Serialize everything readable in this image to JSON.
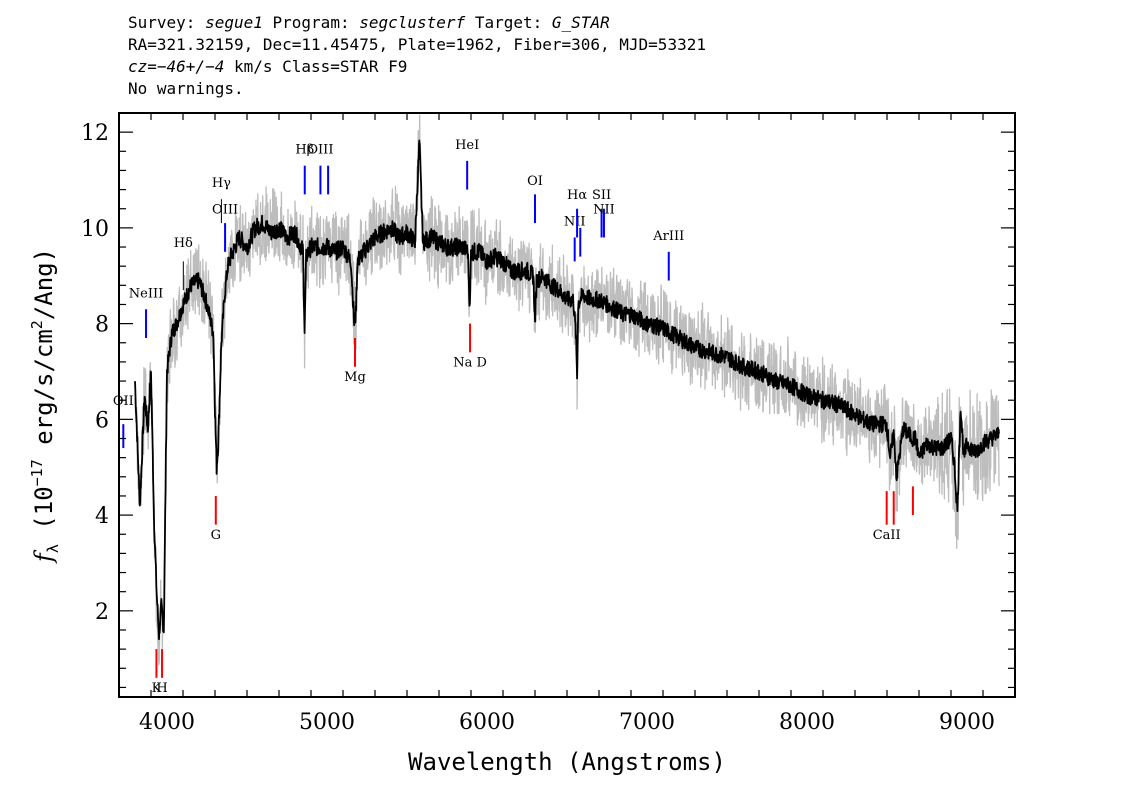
{
  "header": {
    "line1": {
      "survey_label": "Survey:",
      "survey": "segue1",
      "program_label": "Program:",
      "program": "segclusterf",
      "target_label": "Target:",
      "target": "G_STAR"
    },
    "line2": "RA=321.32159, Dec=11.45475, Plate=1962, Fiber=306, MJD=53321",
    "line3": {
      "cz": "cz=−46+/−4",
      "rest": " km/s Class=STAR F9"
    },
    "line4": "No warnings."
  },
  "chart_data": {
    "type": "line",
    "title": "",
    "xlabel": "Wavelength (Angstroms)",
    "ylabel_main": "f",
    "ylabel_sub": "λ",
    "ylabel_rest": " (10",
    "ylabel_exp": "−17",
    "ylabel_tail": " erg/s/cm",
    "ylabel_exp2": "2",
    "ylabel_end": "/Ang)",
    "xlim": [
      3700,
      9300
    ],
    "ylim": [
      0.2,
      12.4
    ],
    "x_ticks": [
      4000,
      5000,
      6000,
      7000,
      8000,
      9000
    ],
    "x_tick_labels": [
      "4000",
      "5000",
      "6000",
      "7000",
      "8000",
      "9000"
    ],
    "y_ticks": [
      2,
      4,
      6,
      8,
      10,
      12
    ],
    "y_tick_labels": [
      "2",
      "4",
      "6",
      "8",
      "10",
      "12"
    ],
    "colors": {
      "flux": "#000000",
      "error_band": "#bdbdbd",
      "emission": "#0000ff",
      "absorption": "#ff0000",
      "balmer": "#000000"
    },
    "series": [
      {
        "role": "flux",
        "x": [
          3800,
          3830,
          3860,
          3880,
          3900,
          3920,
          3935,
          3950,
          3965,
          3980,
          4000,
          4030,
          4060,
          4100,
          4150,
          4200,
          4250,
          4290,
          4300,
          4310,
          4320,
          4340,
          4360,
          4380,
          4400,
          4450,
          4500,
          4550,
          4600,
          4650,
          4700,
          4750,
          4800,
          4850,
          4860,
          4870,
          4900,
          4950,
          5000,
          5050,
          5100,
          5150,
          5170,
          5180,
          5190,
          5250,
          5300,
          5350,
          5400,
          5450,
          5500,
          5550,
          5577,
          5600,
          5650,
          5700,
          5750,
          5800,
          5850,
          5880,
          5893,
          5900,
          5950,
          6000,
          6050,
          6100,
          6150,
          6200,
          6250,
          6290,
          6300,
          6310,
          6350,
          6400,
          6450,
          6500,
          6540,
          6555,
          6563,
          6570,
          6580,
          6600,
          6650,
          6700,
          6750,
          6800,
          6850,
          6900,
          6950,
          7000,
          7100,
          7200,
          7300,
          7400,
          7500,
          7600,
          7700,
          7800,
          7900,
          8000,
          8100,
          8200,
          8300,
          8400,
          8498,
          8520,
          8542,
          8560,
          8600,
          8662,
          8680,
          8700,
          8750,
          8800,
          8850,
          8900,
          8920,
          8940,
          8960,
          8980,
          9000,
          9050,
          9100,
          9150,
          9200
        ],
        "y": [
          6.8,
          4.2,
          6.5,
          5.8,
          7.0,
          3.8,
          2.4,
          1.5,
          2.1,
          1.6,
          7.0,
          7.8,
          8.0,
          8.4,
          8.8,
          8.9,
          8.4,
          7.8,
          6.2,
          5.0,
          5.5,
          7.6,
          8.6,
          9.2,
          9.4,
          9.8,
          9.6,
          10.0,
          10.1,
          9.9,
          10.0,
          9.8,
          9.9,
          9.5,
          7.8,
          9.4,
          9.6,
          9.6,
          9.6,
          9.5,
          9.6,
          9.3,
          8.0,
          8.2,
          9.3,
          9.6,
          9.8,
          9.9,
          10.0,
          9.8,
          9.9,
          9.7,
          11.8,
          9.7,
          9.8,
          9.7,
          9.6,
          9.6,
          9.6,
          9.5,
          8.3,
          9.5,
          9.5,
          9.3,
          9.4,
          9.3,
          9.1,
          9.1,
          9.1,
          9.0,
          8.0,
          8.9,
          9.0,
          8.8,
          8.7,
          8.5,
          8.5,
          7.8,
          6.9,
          8.4,
          8.5,
          8.6,
          8.5,
          8.5,
          8.4,
          8.3,
          8.2,
          8.2,
          8.1,
          8.0,
          7.9,
          7.7,
          7.5,
          7.4,
          7.3,
          7.1,
          7.0,
          6.8,
          6.7,
          6.5,
          6.4,
          6.3,
          6.1,
          5.9,
          5.9,
          5.2,
          5.7,
          4.8,
          5.8,
          5.6,
          5.6,
          5.2,
          5.5,
          5.4,
          5.4,
          5.6,
          5.1,
          4.1,
          6.3,
          5.2,
          5.5,
          5.3,
          5.5,
          5.6,
          5.7
        ]
      }
    ],
    "spectral_lines": [
      {
        "label": "OII",
        "x": 3727,
        "y_top": 5.9,
        "y_bot": 5.4,
        "kind": "emission",
        "label_y": 6.3
      },
      {
        "label": "NeIII",
        "x": 3869,
        "y_top": 8.3,
        "y_bot": 7.7,
        "kind": "emission",
        "label_y": 8.55
      },
      {
        "label": "Hδ",
        "x": 4102,
        "y_top": 9.3,
        "y_bot": 8.7,
        "kind": "balmer",
        "label_y": 9.6
      },
      {
        "label": "Hγ",
        "x": 4340,
        "y_top": 10.6,
        "y_bot": 10.1,
        "kind": "balmer",
        "label_y": 10.85
      },
      {
        "label": "OIII",
        "x": 4363,
        "y_top": 10.1,
        "y_bot": 9.5,
        "kind": "emission",
        "label_y": 10.3
      },
      {
        "label": "Hβ",
        "x": 4861,
        "y_top": 11.3,
        "y_bot": 10.7,
        "kind": "emission",
        "label_y": 11.55
      },
      {
        "label": "OIII",
        "x": 4959,
        "y_top": 11.3,
        "y_bot": 10.7,
        "kind": "emission",
        "label_y": 11.55
      },
      {
        "label": "",
        "x": 5007,
        "y_top": 11.3,
        "y_bot": 10.7,
        "kind": "emission",
        "label_y": 11.55
      },
      {
        "label": "HeI",
        "x": 5876,
        "y_top": 11.4,
        "y_bot": 10.8,
        "kind": "emission",
        "label_y": 11.65
      },
      {
        "label": "OI",
        "x": 6300,
        "y_top": 10.7,
        "y_bot": 10.1,
        "kind": "emission",
        "label_y": 10.9
      },
      {
        "label": "NII",
        "x": 6548,
        "y_top": 9.8,
        "y_bot": 9.3,
        "kind": "emission",
        "label_y": 10.05
      },
      {
        "label": "Hα",
        "x": 6563,
        "y_top": 10.4,
        "y_bot": 9.8,
        "kind": "emission",
        "label_y": 10.6
      },
      {
        "label": "",
        "x": 6583,
        "y_top": 10.0,
        "y_bot": 9.4,
        "kind": "emission",
        "label_y": 10.3
      },
      {
        "label": "SII",
        "x": 6716,
        "y_top": 10.4,
        "y_bot": 9.8,
        "kind": "emission",
        "label_y": 10.6
      },
      {
        "label": "NII",
        "x": 6731,
        "y_top": 10.4,
        "y_bot": 9.8,
        "kind": "emission",
        "label_y": 10.3
      },
      {
        "label": "ArIII",
        "x": 7136,
        "y_top": 9.5,
        "y_bot": 8.9,
        "kind": "emission",
        "label_y": 9.75
      },
      {
        "label": "K",
        "x": 3934,
        "y_top": 1.2,
        "y_bot": 0.6,
        "kind": "absorption",
        "label_y": 0.3
      },
      {
        "label": "H",
        "x": 3969,
        "y_top": 1.2,
        "y_bot": 0.6,
        "kind": "absorption",
        "label_y": 0.3
      },
      {
        "label": "G",
        "x": 4305,
        "y_top": 4.4,
        "y_bot": 3.8,
        "kind": "absorption",
        "label_y": 3.5
      },
      {
        "label": "Mg",
        "x": 5175,
        "y_top": 7.7,
        "y_bot": 7.1,
        "kind": "absorption",
        "label_y": 6.8
      },
      {
        "label": "Na D",
        "x": 5894,
        "y_top": 8.0,
        "y_bot": 7.4,
        "kind": "absorption",
        "label_y": 7.1
      },
      {
        "label": "CaII",
        "x": 8498,
        "y_top": 4.5,
        "y_bot": 3.8,
        "kind": "absorption",
        "label_y": 3.5
      },
      {
        "label": "",
        "x": 8542,
        "y_top": 4.5,
        "y_bot": 3.8,
        "kind": "absorption",
        "label_y": 3.5
      },
      {
        "label": "",
        "x": 8662,
        "y_top": 4.6,
        "y_bot": 4.0,
        "kind": "absorption",
        "label_y": 3.5
      }
    ]
  }
}
